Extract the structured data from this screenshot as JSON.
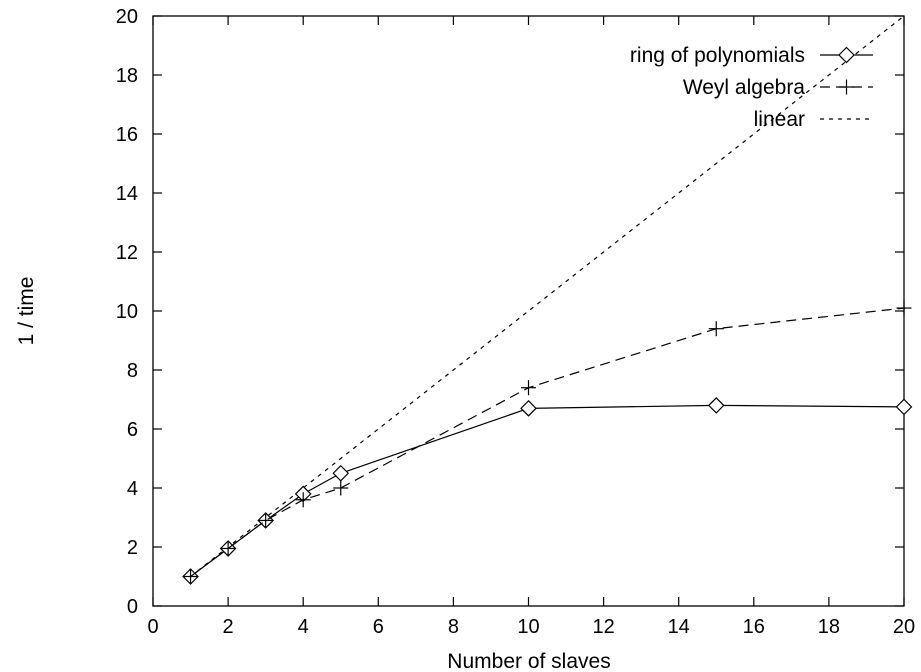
{
  "chart_data": {
    "type": "line",
    "xlabel": "Number of slaves",
    "ylabel": "1 / time",
    "xlim": [
      0,
      20
    ],
    "ylim": [
      0,
      20
    ],
    "xticks": [
      0,
      2,
      4,
      6,
      8,
      10,
      12,
      14,
      16,
      18,
      20
    ],
    "yticks": [
      0,
      2,
      4,
      6,
      8,
      10,
      12,
      14,
      16,
      18,
      20
    ],
    "xtick_labels": [
      "0",
      "2",
      "4",
      "6",
      "8",
      "10",
      "12",
      "14",
      "16",
      "18",
      "20"
    ],
    "ytick_labels": [
      "0",
      "2",
      "4",
      "6",
      "8",
      "10",
      "12",
      "14",
      "16",
      "18",
      "20"
    ],
    "grid": false,
    "legend_position": "top-right",
    "series": [
      {
        "name": "ring of polynomials",
        "style": "solid",
        "marker": "diamond",
        "color": "#000000",
        "x": [
          1,
          2,
          3,
          4,
          5,
          10,
          15,
          20
        ],
        "y": [
          1.0,
          1.95,
          2.9,
          3.8,
          4.5,
          6.7,
          6.8,
          6.75
        ]
      },
      {
        "name": "Weyl algebra",
        "style": "long-dash",
        "marker": "plus",
        "color": "#000000",
        "x": [
          1,
          2,
          3,
          4,
          5,
          10,
          15,
          20
        ],
        "y": [
          1.0,
          1.95,
          2.9,
          3.6,
          4.0,
          7.4,
          9.4,
          10.1
        ]
      },
      {
        "name": "linear",
        "style": "short-dash",
        "marker": "none",
        "color": "#000000",
        "x": [
          1,
          20
        ],
        "y": [
          1,
          20
        ]
      }
    ]
  }
}
